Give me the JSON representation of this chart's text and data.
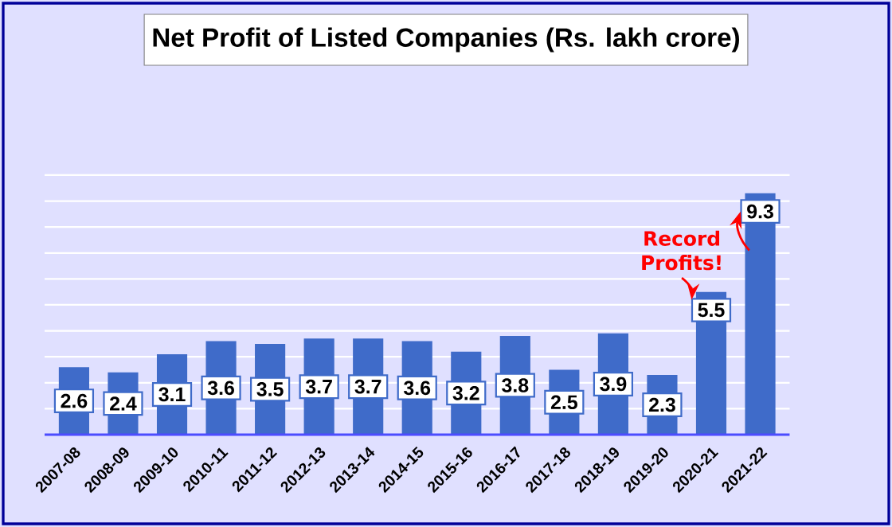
{
  "chart_data": {
    "type": "bar",
    "title": "Net Profit of Listed Companies (Rs. lakh crore)",
    "categories": [
      "2007-08",
      "2008-09",
      "2009-10",
      "2010-11",
      "2011-12",
      "2012-13",
      "2013-14",
      "2014-15",
      "2015-16",
      "2016-17",
      "2017-18",
      "2018-19",
      "2019-20",
      "2020-21",
      "2021-22"
    ],
    "values": [
      2.6,
      2.4,
      3.1,
      3.6,
      3.5,
      3.7,
      3.7,
      3.6,
      3.2,
      3.8,
      2.5,
      3.9,
      2.3,
      5.5,
      9.3
    ],
    "color": "#3f6bc9",
    "grid": "y",
    "data_labels": true,
    "annotations": [
      "Record Profits!"
    ]
  }
}
